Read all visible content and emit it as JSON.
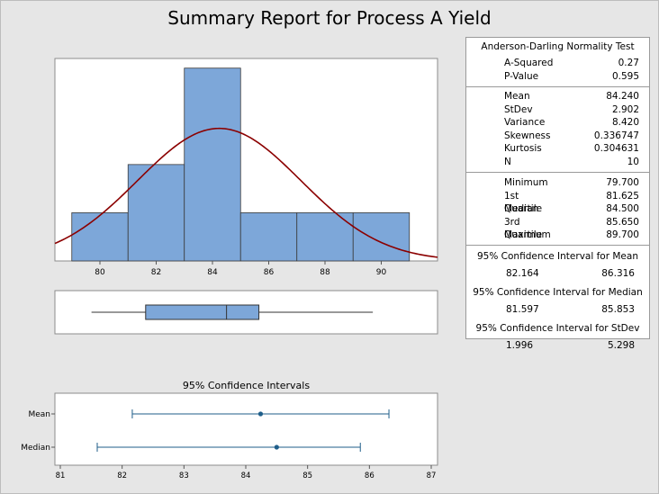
{
  "title": "Summary Report for Process A Yield",
  "stats": {
    "ad_header": "Anderson-Darling Normality Test",
    "ad_rows": [
      {
        "label": "A-Squared",
        "value": "0.27"
      },
      {
        "label": "P-Value",
        "value": "0.595"
      }
    ],
    "moment_rows": [
      {
        "label": "Mean",
        "value": "84.240"
      },
      {
        "label": "StDev",
        "value": "2.902"
      },
      {
        "label": "Variance",
        "value": "8.420"
      },
      {
        "label": "Skewness",
        "value": "0.336747"
      },
      {
        "label": "Kurtosis",
        "value": "0.304631"
      },
      {
        "label": "N",
        "value": "10"
      }
    ],
    "quartile_rows": [
      {
        "label": "Minimum",
        "value": "79.700"
      },
      {
        "label": "1st Quartile",
        "value": "81.625"
      },
      {
        "label": "Median",
        "value": "84.500"
      },
      {
        "label": "3rd Quartile",
        "value": "85.650"
      },
      {
        "label": "Maximum",
        "value": "89.700"
      }
    ],
    "ci_mean_header": "95% Confidence Interval for Mean",
    "ci_mean": [
      "82.164",
      "86.316"
    ],
    "ci_median_header": "95% Confidence Interval for Median",
    "ci_median": [
      "81.597",
      "85.853"
    ],
    "ci_stdev_header": "95% Confidence Interval for StDev",
    "ci_stdev": [
      "1.996",
      "5.298"
    ]
  },
  "chart_data": [
    {
      "type": "bar",
      "bins": [
        {
          "from": 79,
          "to": 81,
          "count": 1
        },
        {
          "from": 81,
          "to": 83,
          "count": 2
        },
        {
          "from": 83,
          "to": 85,
          "count": 4
        },
        {
          "from": 85,
          "to": 87,
          "count": 1
        },
        {
          "from": 87,
          "to": 89,
          "count": 1
        },
        {
          "from": 89,
          "to": 91,
          "count": 1
        }
      ],
      "xlim": [
        78.4,
        92
      ],
      "ylim": [
        0,
        4.2
      ],
      "xticks": [
        "80",
        "82",
        "84",
        "86",
        "88",
        "90"
      ],
      "normal_fit": {
        "mean": 84.24,
        "stdev": 2.902
      },
      "bar_color": "#7da7d9",
      "curve_color": "#8b0000"
    },
    {
      "type": "boxplot",
      "min": 79.7,
      "q1": 81.625,
      "median": 84.5,
      "q3": 85.65,
      "max": 89.7
    },
    {
      "type": "interval",
      "title": "95% Confidence Intervals",
      "categories": [
        "Mean",
        "Median"
      ],
      "estimates": [
        84.24,
        84.5
      ],
      "lower": [
        82.164,
        81.597
      ],
      "upper": [
        86.316,
        85.853
      ],
      "xlim": [
        81,
        87
      ],
      "xticks": [
        "81",
        "82",
        "83",
        "84",
        "85",
        "86",
        "87"
      ],
      "color": "#1f5e8a"
    }
  ]
}
